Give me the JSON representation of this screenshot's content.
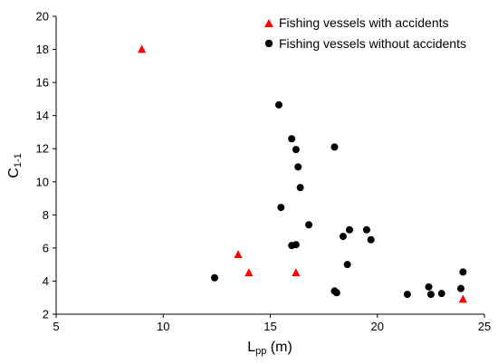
{
  "chart_data": {
    "type": "scatter",
    "xlabel": {
      "main": "L",
      "sub": "pp",
      "rest": " (m)"
    },
    "ylabel": {
      "main": "C",
      "sub": "1-1"
    },
    "xlim": [
      5,
      25
    ],
    "ylim": [
      2,
      20
    ],
    "xticks": [
      5,
      10,
      15,
      20,
      25
    ],
    "yticks": [
      2,
      4,
      6,
      8,
      10,
      12,
      14,
      16,
      18,
      20
    ],
    "grid": false,
    "legend_position": "top-right",
    "series": [
      {
        "name": "Fishing vessels with accidents",
        "marker": "triangle",
        "color": "#ff0000",
        "points": [
          [
            9.0,
            18.0
          ],
          [
            13.5,
            5.6
          ],
          [
            14.0,
            4.5
          ],
          [
            16.2,
            4.5
          ],
          [
            24.0,
            2.9
          ]
        ]
      },
      {
        "name": "Fishing vessels without accidents",
        "marker": "circle",
        "color": "#000000",
        "points": [
          [
            12.4,
            4.2
          ],
          [
            15.4,
            14.65
          ],
          [
            15.5,
            8.45
          ],
          [
            16.0,
            12.6
          ],
          [
            16.2,
            11.95
          ],
          [
            16.3,
            10.9
          ],
          [
            16.4,
            9.65
          ],
          [
            16.8,
            7.4
          ],
          [
            16.0,
            6.15
          ],
          [
            16.2,
            6.2
          ],
          [
            18.0,
            12.1
          ],
          [
            18.0,
            3.4
          ],
          [
            18.1,
            3.3
          ],
          [
            18.4,
            6.7
          ],
          [
            18.6,
            5.0
          ],
          [
            18.7,
            7.1
          ],
          [
            19.5,
            7.1
          ],
          [
            19.7,
            6.5
          ],
          [
            21.4,
            3.2
          ],
          [
            22.4,
            3.65
          ],
          [
            22.5,
            3.2
          ],
          [
            23.0,
            3.25
          ],
          [
            23.9,
            3.55
          ],
          [
            24.0,
            4.55
          ]
        ]
      }
    ]
  }
}
